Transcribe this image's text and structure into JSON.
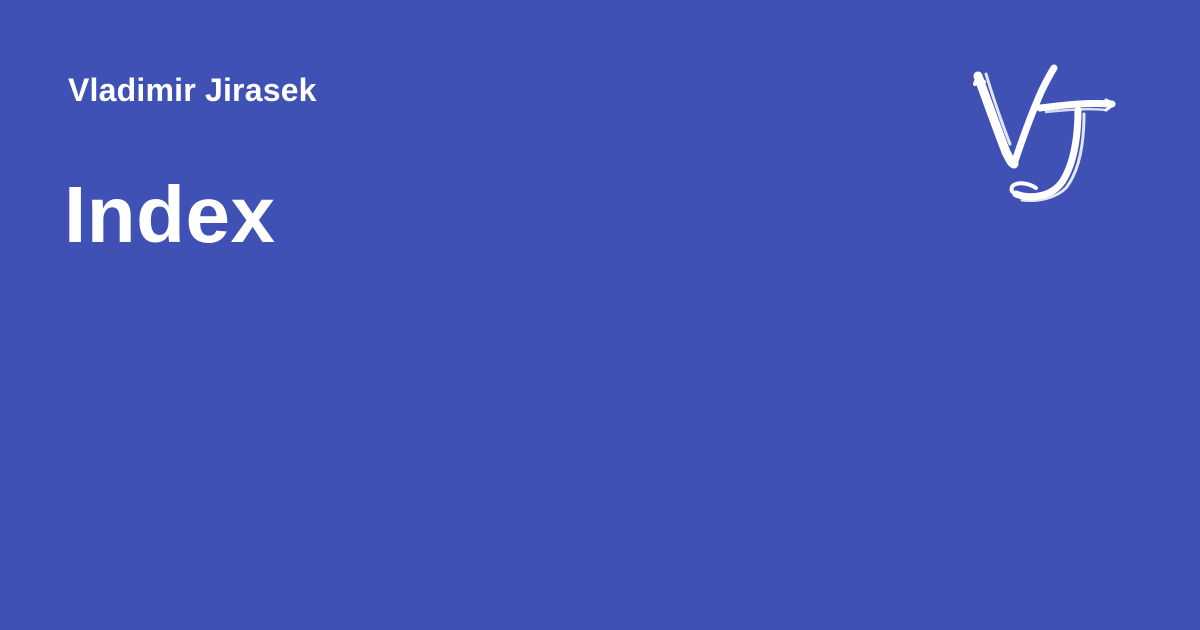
{
  "author": {
    "name": "Vladimir Jirasek"
  },
  "page": {
    "title": "Index"
  },
  "logo": {
    "icon": "vj-monogram-icon",
    "text": "VJ"
  },
  "colors": {
    "background": "#3f51b5",
    "text": "#ffffff"
  }
}
